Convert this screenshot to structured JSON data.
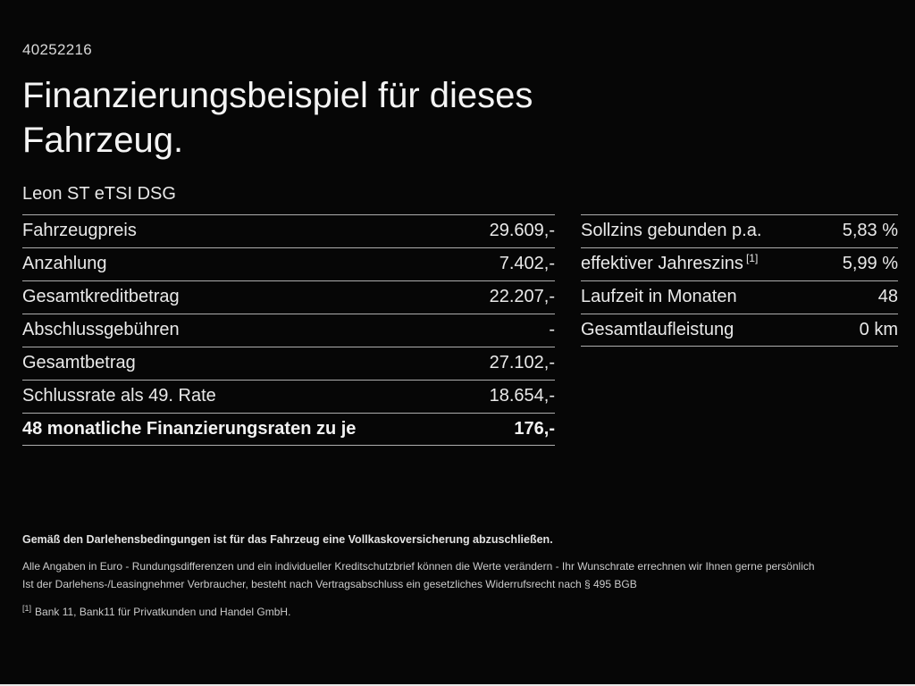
{
  "page": {
    "reference_number": "40252216",
    "title": "Finanzierungsbeispiel für dieses Fahrzeug.",
    "vehicle_model": "Leon ST eTSI DSG"
  },
  "finance_table": {
    "rows": [
      {
        "label": "Fahrzeugpreis",
        "value": "29.609,-"
      },
      {
        "label": "Anzahlung",
        "value": "7.402,-"
      },
      {
        "label": "Gesamtkreditbetrag",
        "value": "22.207,-"
      },
      {
        "label": "Abschlussgebühren",
        "value": "-"
      },
      {
        "label": "Gesamtbetrag",
        "value": "27.102,-"
      },
      {
        "label": "Schlussrate als 49. Rate",
        "value": "18.654,-"
      },
      {
        "label": "48 monatliche Finanzierungsraten zu je",
        "value": "176,-"
      }
    ]
  },
  "conditions_table": {
    "rows": [
      {
        "label": "Sollzins gebunden p.a.",
        "sup": "",
        "value": "5,83 %"
      },
      {
        "label": "effektiver Jahreszins",
        "sup": "[1]",
        "value": "5,99 %"
      },
      {
        "label": "Laufzeit in Monaten",
        "sup": "",
        "value": "48"
      },
      {
        "label": "Gesamtlaufleistung",
        "sup": "",
        "value": "0 km"
      }
    ]
  },
  "footer": {
    "insurance_note": "Gemäß den Darlehensbedingungen ist für das Fahrzeug eine Vollkaskoversicherung abzuschließen.",
    "disclaimer_line1": "Alle Angaben in Euro - Rundungsdifferenzen und ein individueller Kreditschutzbrief können die Werte verändern - Ihr Wunschrate errechnen wir Ihnen gerne persönlich",
    "disclaimer_line2": "Ist der Darlehens-/Leasingnehmer Verbraucher, besteht nach Vertragsabschluss ein gesetzliches Widerrufsrecht nach § 495 BGB",
    "footnote_marker": "[1]",
    "footnote_text": "Bank 11, Bank11 für Privatkunden und Handel GmbH."
  }
}
